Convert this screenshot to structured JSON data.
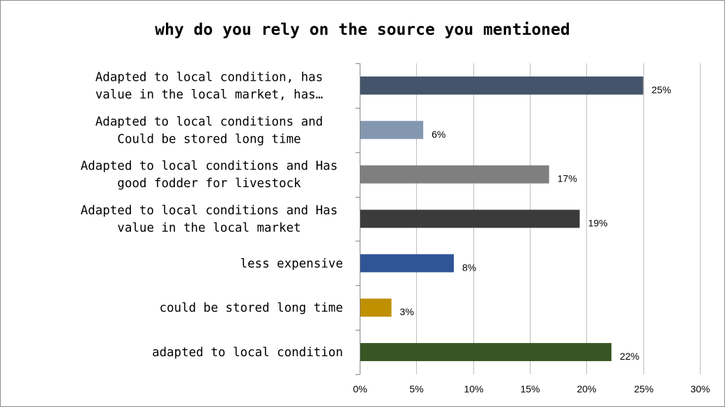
{
  "chart_data": {
    "type": "bar",
    "orientation": "horizontal",
    "title": "why do you rely on the source you mentioned",
    "xlabel": "",
    "ylabel": "",
    "xlim": [
      0,
      30
    ],
    "x_ticks": [
      "0%",
      "5%",
      "10%",
      "15%",
      "20%",
      "25%",
      "30%"
    ],
    "grid": "vertical",
    "legend": "none",
    "categories": [
      [
        "Adapted to local condition, has",
        "value in the local market, has…"
      ],
      [
        "Adapted to local conditions and",
        "Could be stored long time"
      ],
      [
        "Adapted to local conditions and Has",
        "good fodder for livestock"
      ],
      [
        "Adapted to local conditions and Has",
        "value in the local market"
      ],
      [
        "less expensive"
      ],
      [
        "could be stored long time"
      ],
      [
        "adapted to local condition"
      ]
    ],
    "values": [
      25,
      5.6,
      16.7,
      19.4,
      8.3,
      2.8,
      22.2
    ],
    "data_labels": [
      "25%",
      "6%",
      "17%",
      "19%",
      "8%",
      "3%",
      "22%"
    ],
    "colors": [
      "#44546a",
      "#8497b0",
      "#7f7f7f",
      "#3b3b3b",
      "#2f5597",
      "#bf9000",
      "#375623"
    ]
  }
}
